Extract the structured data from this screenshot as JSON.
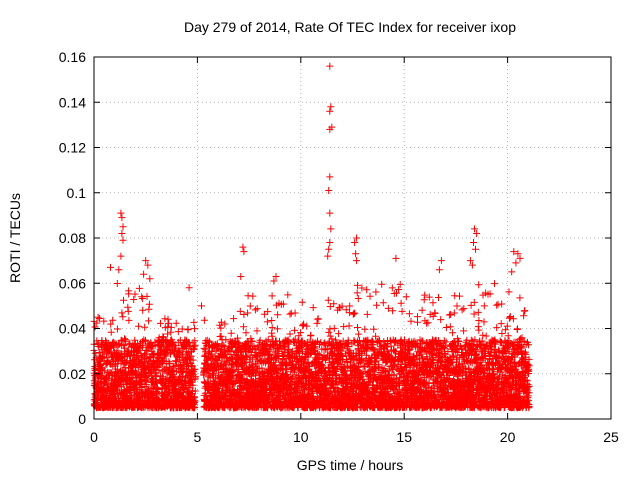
{
  "chart_data": {
    "type": "scatter",
    "title": "Day 279 of 2014, Rate Of TEC Index for receiver ixop",
    "xlabel": "GPS time / hours",
    "ylabel": "ROTI / TECUs",
    "xlim": [
      0,
      25
    ],
    "ylim": [
      0,
      0.16
    ],
    "xticks": [
      0,
      5,
      10,
      15,
      20,
      25
    ],
    "xtick_labels": [
      "0",
      "5",
      "10",
      "15",
      "20",
      "25"
    ],
    "yticks": [
      0,
      0.02,
      0.04,
      0.06,
      0.08,
      0.1,
      0.12,
      0.14,
      0.16
    ],
    "ytick_labels": [
      "0",
      "0.02",
      "0.04",
      "0.06",
      "0.08",
      "0.1",
      "0.12",
      "0.14",
      "0.16"
    ],
    "grid": true,
    "marker": "+",
    "color": "#ff0000",
    "gaps_hours": [
      [
        4.9,
        5.3
      ]
    ],
    "spikes": [
      {
        "x": 11.4,
        "y": 0.156
      },
      {
        "x": 11.45,
        "y": 0.138
      },
      {
        "x": 11.4,
        "y": 0.136
      },
      {
        "x": 11.5,
        "y": 0.129
      },
      {
        "x": 11.4,
        "y": 0.128
      },
      {
        "x": 11.4,
        "y": 0.107
      },
      {
        "x": 11.35,
        "y": 0.101
      },
      {
        "x": 11.4,
        "y": 0.091
      },
      {
        "x": 11.45,
        "y": 0.084
      },
      {
        "x": 11.4,
        "y": 0.078
      },
      {
        "x": 11.3,
        "y": 0.072
      },
      {
        "x": 11.35,
        "y": 0.075
      },
      {
        "x": 1.3,
        "y": 0.091
      },
      {
        "x": 1.35,
        "y": 0.089
      },
      {
        "x": 1.4,
        "y": 0.085
      },
      {
        "x": 1.35,
        "y": 0.082
      },
      {
        "x": 1.4,
        "y": 0.079
      },
      {
        "x": 1.3,
        "y": 0.072
      },
      {
        "x": 2.5,
        "y": 0.07
      },
      {
        "x": 2.6,
        "y": 0.068
      },
      {
        "x": 2.4,
        "y": 0.064
      },
      {
        "x": 2.7,
        "y": 0.062
      },
      {
        "x": 0.8,
        "y": 0.067
      },
      {
        "x": 1.2,
        "y": 0.066
      },
      {
        "x": 7.2,
        "y": 0.076
      },
      {
        "x": 7.25,
        "y": 0.074
      },
      {
        "x": 7.1,
        "y": 0.063
      },
      {
        "x": 8.8,
        "y": 0.063
      },
      {
        "x": 8.7,
        "y": 0.061
      },
      {
        "x": 12.7,
        "y": 0.08
      },
      {
        "x": 12.6,
        "y": 0.078
      },
      {
        "x": 12.65,
        "y": 0.073
      },
      {
        "x": 12.7,
        "y": 0.07
      },
      {
        "x": 14.6,
        "y": 0.071
      },
      {
        "x": 18.4,
        "y": 0.084
      },
      {
        "x": 18.5,
        "y": 0.082
      },
      {
        "x": 18.35,
        "y": 0.078
      },
      {
        "x": 18.45,
        "y": 0.075
      },
      {
        "x": 18.2,
        "y": 0.07
      },
      {
        "x": 18.3,
        "y": 0.068
      },
      {
        "x": 16.8,
        "y": 0.07
      },
      {
        "x": 16.7,
        "y": 0.066
      },
      {
        "x": 20.3,
        "y": 0.074
      },
      {
        "x": 20.5,
        "y": 0.073
      },
      {
        "x": 20.6,
        "y": 0.071
      },
      {
        "x": 20.4,
        "y": 0.069
      },
      {
        "x": 20.2,
        "y": 0.065
      },
      {
        "x": 5.2,
        "y": 0.05
      },
      {
        "x": 4.6,
        "y": 0.058
      },
      {
        "x": 0.2,
        "y": 0.045
      }
    ],
    "bulk_series": {
      "x_range": [
        0,
        21.05
      ],
      "step_hours": 0.0083,
      "typical_y_range": [
        0.005,
        0.035
      ],
      "median_y": 0.015,
      "max_y_by_segment": [
        {
          "x": [
            0,
            1
          ],
          "max_y": 0.045
        },
        {
          "x": [
            1,
            3
          ],
          "max_y": 0.06
        },
        {
          "x": [
            3,
            4.9
          ],
          "max_y": 0.045
        },
        {
          "x": [
            5.3,
            7
          ],
          "max_y": 0.045
        },
        {
          "x": [
            7,
            9
          ],
          "max_y": 0.055
        },
        {
          "x": [
            9,
            12
          ],
          "max_y": 0.055
        },
        {
          "x": [
            12,
            15
          ],
          "max_y": 0.06
        },
        {
          "x": [
            15,
            18
          ],
          "max_y": 0.055
        },
        {
          "x": [
            18,
            21.05
          ],
          "max_y": 0.06
        }
      ]
    }
  }
}
